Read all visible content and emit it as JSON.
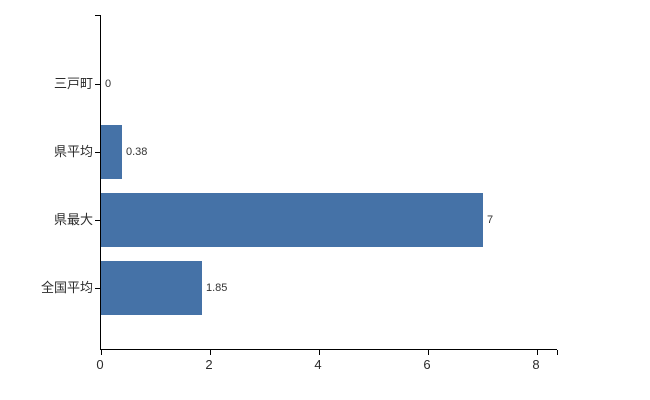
{
  "chart_data": {
    "type": "bar",
    "orientation": "horizontal",
    "title": "",
    "xlabel": "",
    "ylabel": "",
    "categories": [
      "三戸町",
      "県平均",
      "県最大",
      "全国平均"
    ],
    "values": [
      0,
      0.38,
      7,
      1.85
    ],
    "value_labels": [
      "0",
      "0.38",
      "7",
      "1.85"
    ],
    "xlim": [
      0,
      8.4
    ],
    "x_ticks": [
      0,
      2,
      4,
      6,
      8
    ],
    "x_tick_labels": [
      "0",
      "2",
      "4",
      "6",
      "8"
    ],
    "grid": "off",
    "legend": "none",
    "bar_color": "#4572a7",
    "axis_color": "#000000",
    "label_color": "#2b2b2b",
    "background_color": "#ffffff"
  }
}
